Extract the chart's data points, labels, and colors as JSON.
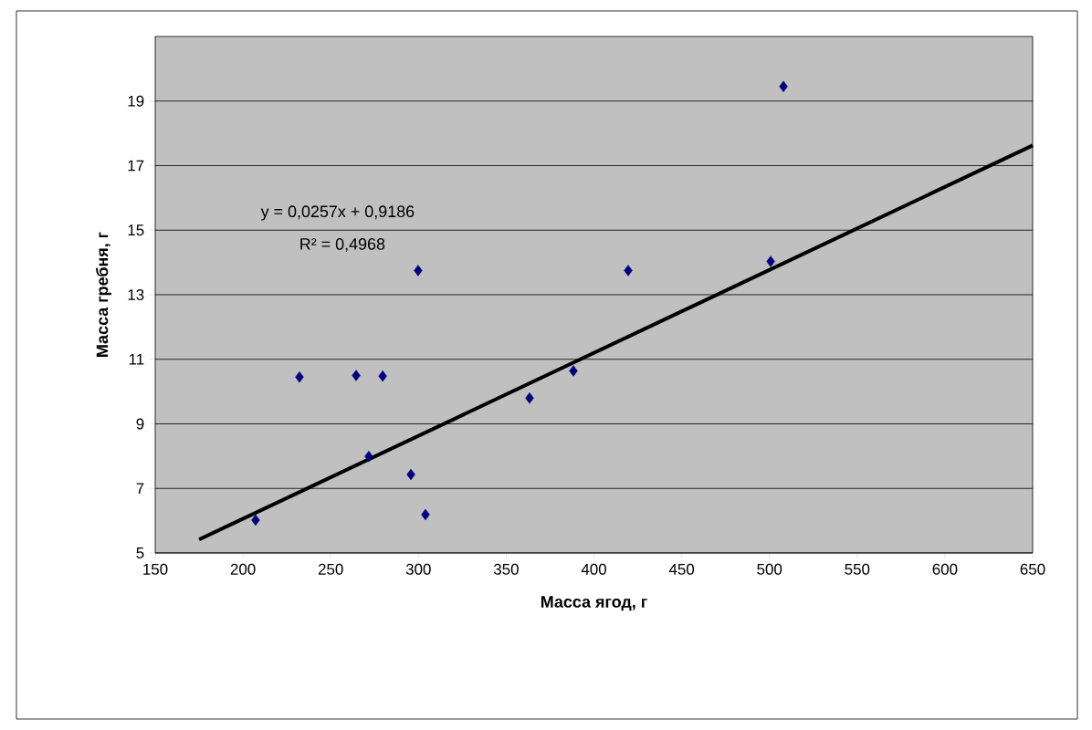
{
  "chart_data": {
    "type": "scatter",
    "xlabel": "Масса ягод, г",
    "ylabel": "Масса гребня, г",
    "annotations": [
      "y = 0,0257x + 0,9186",
      "R² = 0,4968"
    ],
    "series": [
      {
        "color": "#000080",
        "marker": "diamond",
        "x": [
          207.2,
          232.2,
          264.5,
          271.7,
          279.6,
          295.7,
          299.8,
          304.0,
          363.3,
          388.3,
          419.5,
          500.7,
          508.0
        ],
        "values": [
          6.02,
          10.45,
          10.5,
          7.99,
          10.48,
          7.43,
          13.75,
          6.19,
          9.8,
          10.64,
          13.75,
          14.03,
          19.45
        ]
      },
      {
        "type": "line",
        "color": "#000000",
        "marker": "none",
        "line_style": "solid",
        "x": [
          175,
          650
        ],
        "values": [
          5.416,
          17.624
        ]
      }
    ],
    "xlim": [
      150,
      650
    ],
    "ylim": [
      5,
      21
    ],
    "xticks": [
      150,
      200,
      250,
      300,
      350,
      400,
      450,
      500,
      550,
      600,
      650
    ],
    "yticks": [
      5,
      7,
      9,
      11,
      13,
      15,
      17,
      19
    ],
    "grid": "y"
  }
}
